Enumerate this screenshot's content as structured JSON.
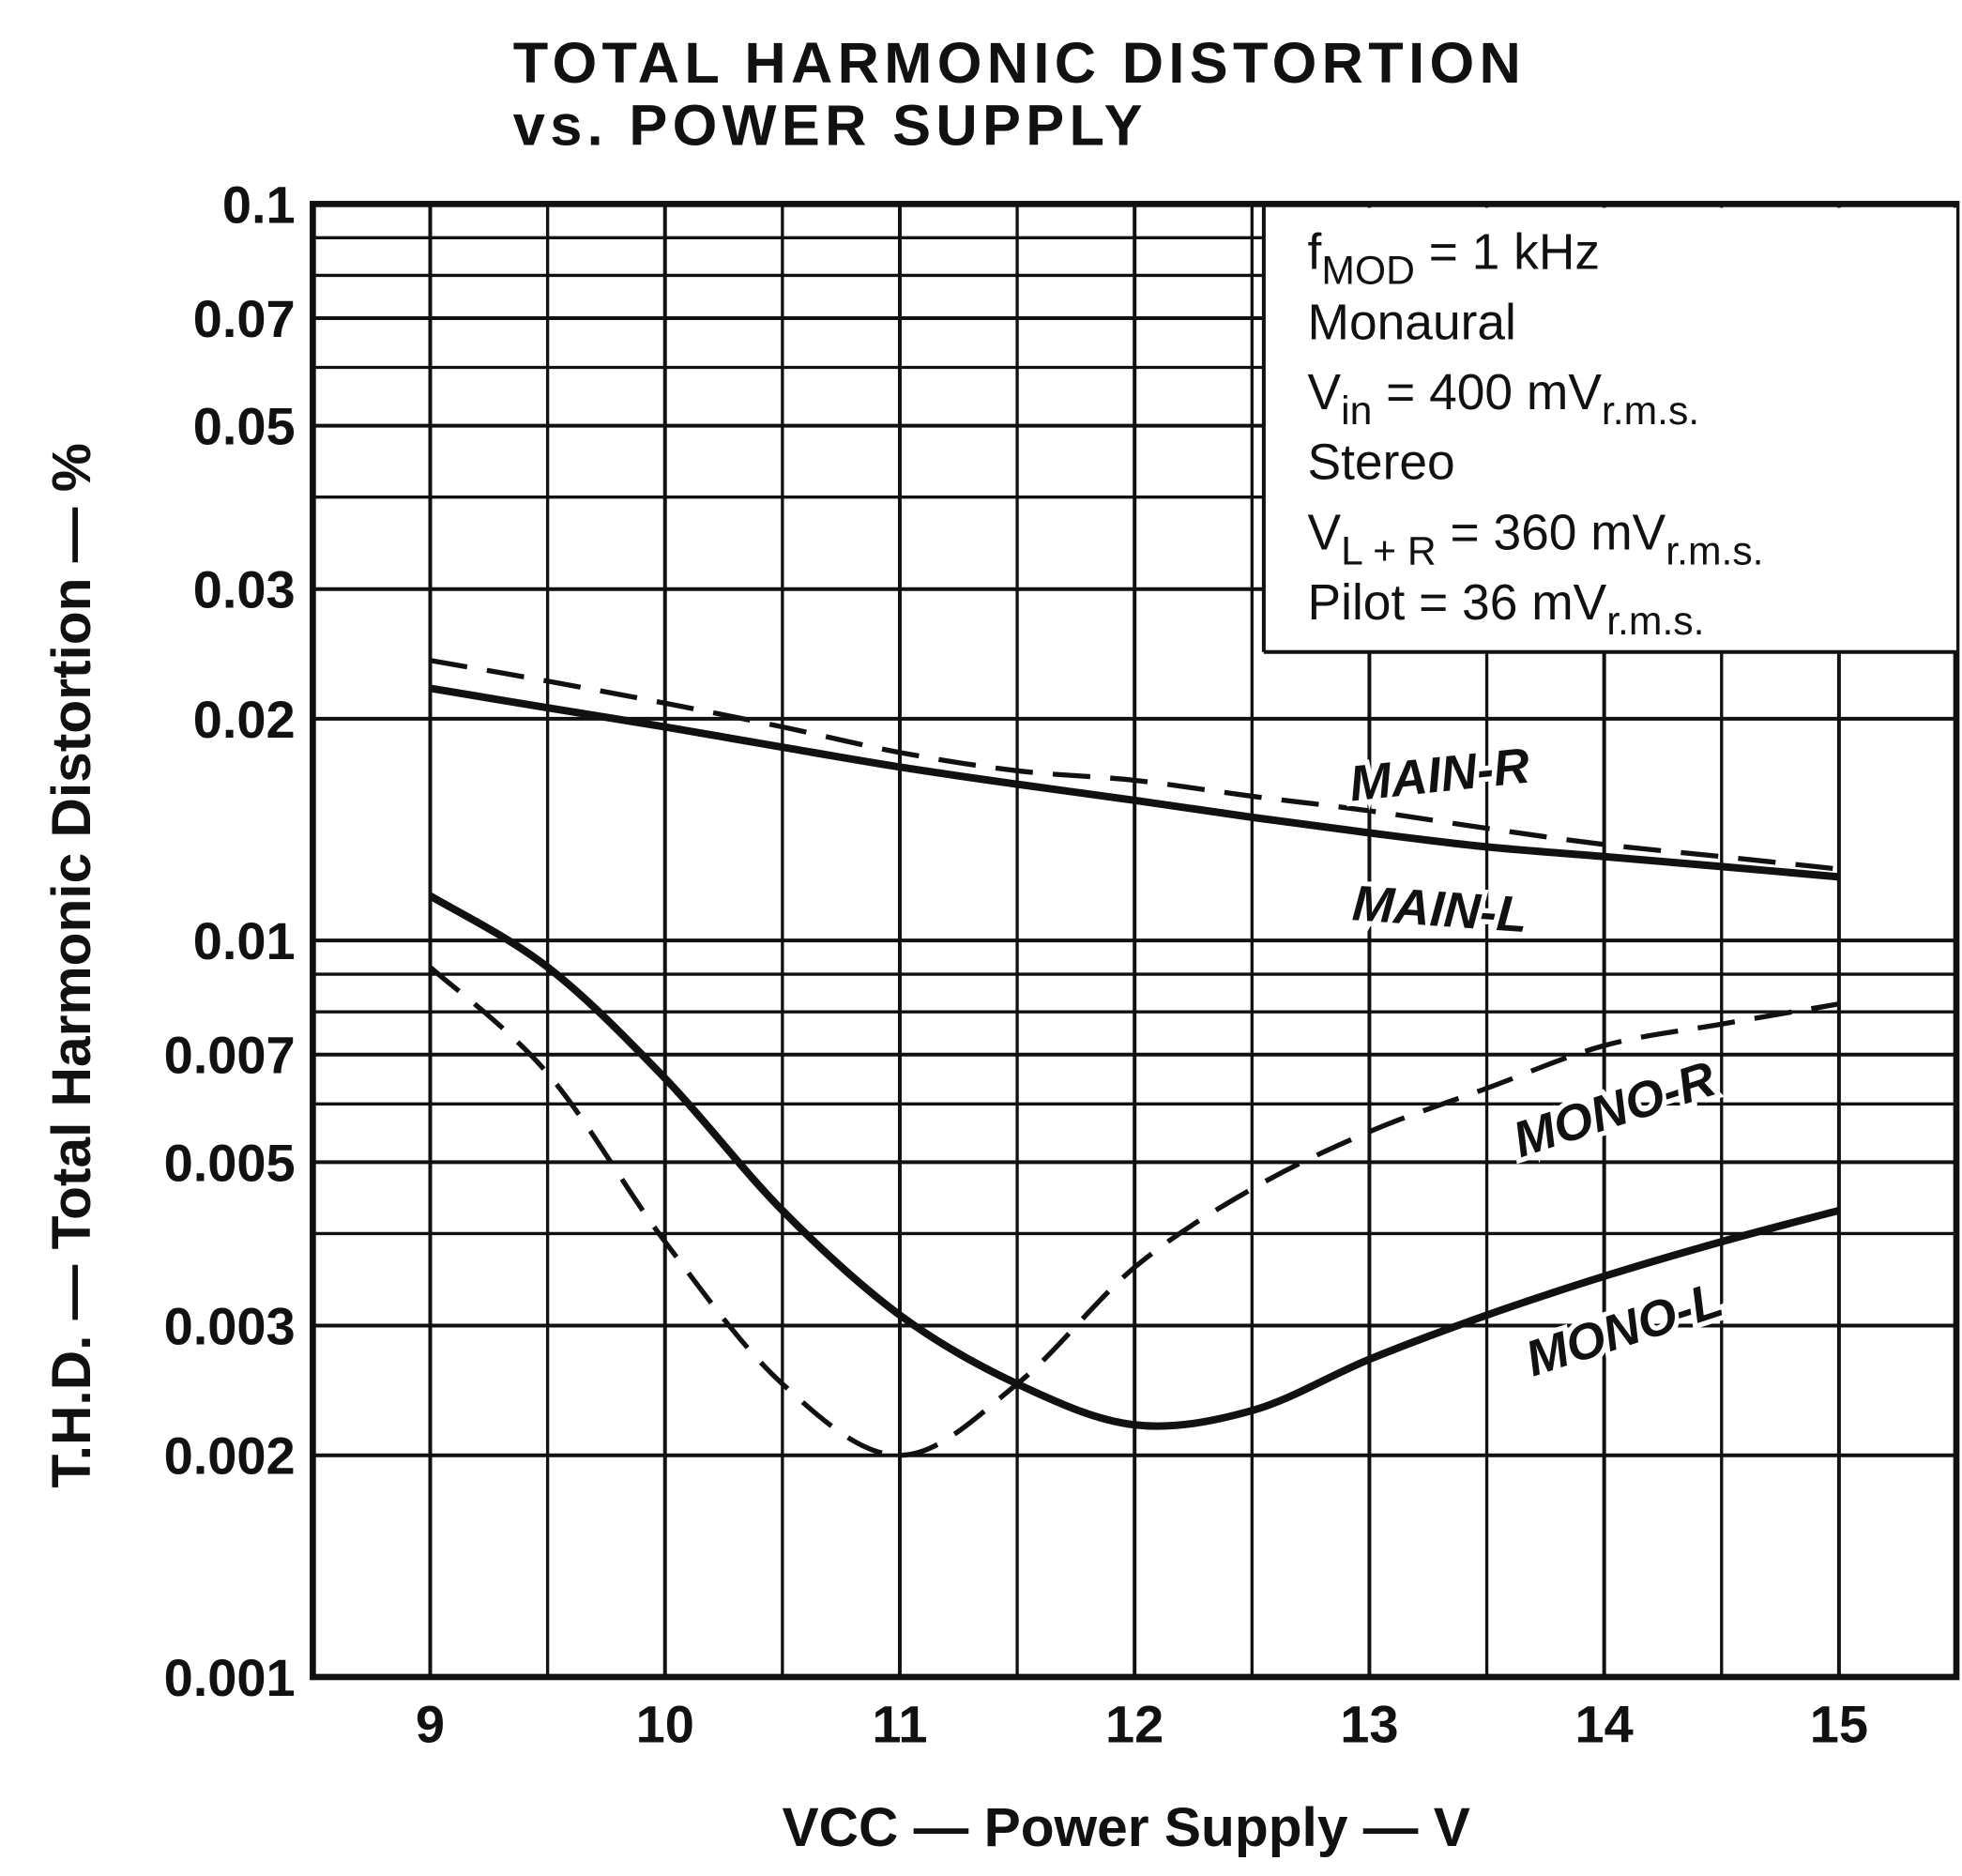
{
  "chart_data": {
    "type": "line",
    "title": [
      "TOTAL HARMONIC DISTORTION",
      "vs. POWER SUPPLY"
    ],
    "x_label": "VCC — Power Supply — V",
    "y_label": "T.H.D. — Total Harmonic Distortion — %",
    "x": [
      9,
      9.5,
      10,
      10.5,
      11,
      11.5,
      12,
      12.5,
      13,
      13.5,
      14,
      14.5,
      15
    ],
    "series": [
      {
        "name": "MAIN-R",
        "color": "#111111",
        "dashed": true,
        "values": [
          0.024,
          0.0225,
          0.021,
          0.0195,
          0.018,
          0.017,
          0.0165,
          0.0157,
          0.015,
          0.0142,
          0.0135,
          0.013,
          0.0125
        ]
      },
      {
        "name": "MAIN-L",
        "color": "#111111",
        "dashed": false,
        "values": [
          0.022,
          0.0207,
          0.0195,
          0.0183,
          0.0172,
          0.0163,
          0.0155,
          0.0147,
          0.014,
          0.0134,
          0.013,
          0.0126,
          0.0122
        ]
      },
      {
        "name": "MONO-R",
        "color": "#111111",
        "dashed": true,
        "values": [
          0.0092,
          0.0066,
          0.0039,
          0.0025,
          0.002,
          0.0025,
          0.0036,
          0.0046,
          0.0055,
          0.0063,
          0.0072,
          0.0077,
          0.0082
        ]
      },
      {
        "name": "MONO-L",
        "color": "#111111",
        "dashed": false,
        "values": [
          0.0115,
          0.0092,
          0.0065,
          0.0043,
          0.0031,
          0.0025,
          0.0022,
          0.0023,
          0.0027,
          0.0031,
          0.0035,
          0.0039,
          0.0043
        ]
      }
    ],
    "xlim": [
      8.5,
      15.5
    ],
    "xticks": [
      9,
      10,
      11,
      12,
      13,
      14,
      15
    ],
    "x_minor_grid": [
      9.5,
      10.5,
      11.5,
      12.5,
      13.5,
      14.5
    ],
    "ylim": [
      0.001,
      0.1
    ],
    "y_log": true,
    "yticks": [
      0.001,
      0.002,
      0.003,
      0.005,
      0.007,
      0.01,
      0.02,
      0.03,
      0.05,
      0.07,
      0.1
    ],
    "y_minor_grid": [
      0.004,
      0.006,
      0.008,
      0.009,
      0.04,
      0.06,
      0.08,
      0.09
    ],
    "grid": true,
    "annotation": [
      [
        {
          "text": "f"
        },
        {
          "text": "MOD",
          "sub": true
        },
        {
          "text": " = 1 kHz"
        }
      ],
      [
        {
          "text": "Monaural"
        }
      ],
      [
        {
          "text": "V"
        },
        {
          "text": "in",
          "sub": true
        },
        {
          "text": " = 400 mV"
        },
        {
          "text": "r.m.s.",
          "sub": true
        }
      ],
      [
        {
          "text": "Stereo"
        }
      ],
      [
        {
          "text": "V"
        },
        {
          "text": "L + R",
          "sub": true
        },
        {
          "text": " = 360 mV"
        },
        {
          "text": "r.m.s.",
          "sub": true
        }
      ],
      [
        {
          "text": "Pilot = 36 mV"
        },
        {
          "text": "r.m.s.",
          "sub": true
        }
      ]
    ]
  }
}
